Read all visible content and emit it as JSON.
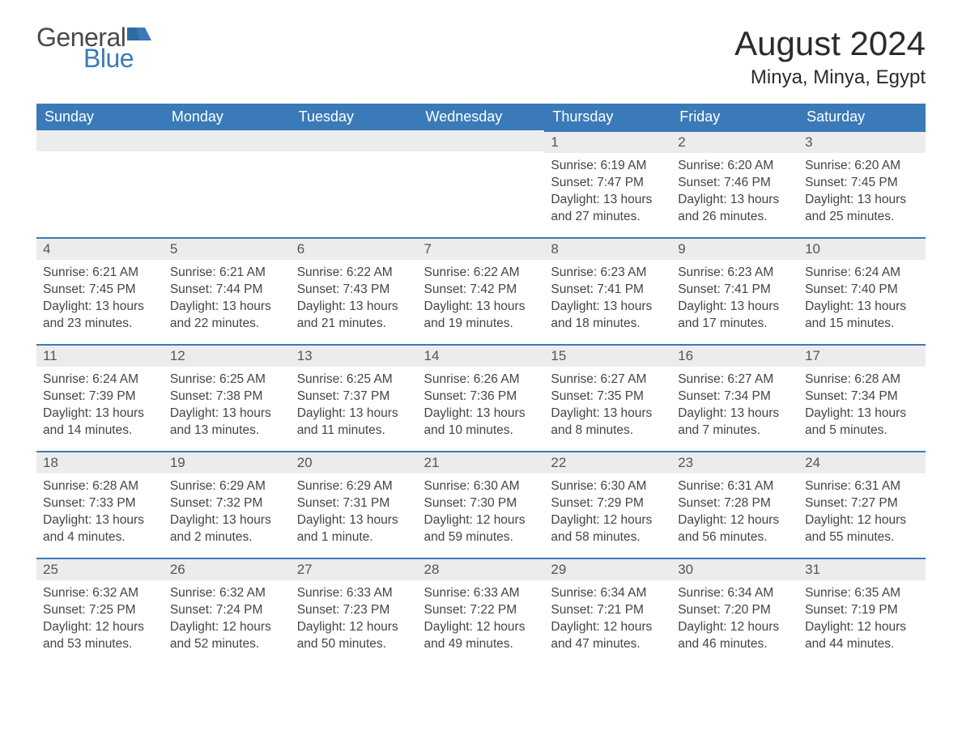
{
  "brand": {
    "word1": "General",
    "word2": "Blue"
  },
  "title": "August 2024",
  "location": "Minya, Minya, Egypt",
  "colors": {
    "header_bg": "#3a7ab8",
    "header_text": "#ffffff",
    "daynum_bg": "#ececec",
    "daynum_border": "#3a7ab8",
    "body_text": "#444444",
    "page_bg": "#ffffff",
    "logo_gray": "#4a4a4a",
    "logo_blue": "#3a7ab8"
  },
  "fonts": {
    "title_size_pt": 32,
    "location_size_pt": 18,
    "header_size_pt": 14,
    "body_size_pt": 12
  },
  "day_headers": [
    "Sunday",
    "Monday",
    "Tuesday",
    "Wednesday",
    "Thursday",
    "Friday",
    "Saturday"
  ],
  "weeks": [
    [
      null,
      null,
      null,
      null,
      {
        "n": "1",
        "sr": "Sunrise: 6:19 AM",
        "ss": "Sunset: 7:47 PM",
        "dl": "Daylight: 13 hours and 27 minutes."
      },
      {
        "n": "2",
        "sr": "Sunrise: 6:20 AM",
        "ss": "Sunset: 7:46 PM",
        "dl": "Daylight: 13 hours and 26 minutes."
      },
      {
        "n": "3",
        "sr": "Sunrise: 6:20 AM",
        "ss": "Sunset: 7:45 PM",
        "dl": "Daylight: 13 hours and 25 minutes."
      }
    ],
    [
      {
        "n": "4",
        "sr": "Sunrise: 6:21 AM",
        "ss": "Sunset: 7:45 PM",
        "dl": "Daylight: 13 hours and 23 minutes."
      },
      {
        "n": "5",
        "sr": "Sunrise: 6:21 AM",
        "ss": "Sunset: 7:44 PM",
        "dl": "Daylight: 13 hours and 22 minutes."
      },
      {
        "n": "6",
        "sr": "Sunrise: 6:22 AM",
        "ss": "Sunset: 7:43 PM",
        "dl": "Daylight: 13 hours and 21 minutes."
      },
      {
        "n": "7",
        "sr": "Sunrise: 6:22 AM",
        "ss": "Sunset: 7:42 PM",
        "dl": "Daylight: 13 hours and 19 minutes."
      },
      {
        "n": "8",
        "sr": "Sunrise: 6:23 AM",
        "ss": "Sunset: 7:41 PM",
        "dl": "Daylight: 13 hours and 18 minutes."
      },
      {
        "n": "9",
        "sr": "Sunrise: 6:23 AM",
        "ss": "Sunset: 7:41 PM",
        "dl": "Daylight: 13 hours and 17 minutes."
      },
      {
        "n": "10",
        "sr": "Sunrise: 6:24 AM",
        "ss": "Sunset: 7:40 PM",
        "dl": "Daylight: 13 hours and 15 minutes."
      }
    ],
    [
      {
        "n": "11",
        "sr": "Sunrise: 6:24 AM",
        "ss": "Sunset: 7:39 PM",
        "dl": "Daylight: 13 hours and 14 minutes."
      },
      {
        "n": "12",
        "sr": "Sunrise: 6:25 AM",
        "ss": "Sunset: 7:38 PM",
        "dl": "Daylight: 13 hours and 13 minutes."
      },
      {
        "n": "13",
        "sr": "Sunrise: 6:25 AM",
        "ss": "Sunset: 7:37 PM",
        "dl": "Daylight: 13 hours and 11 minutes."
      },
      {
        "n": "14",
        "sr": "Sunrise: 6:26 AM",
        "ss": "Sunset: 7:36 PM",
        "dl": "Daylight: 13 hours and 10 minutes."
      },
      {
        "n": "15",
        "sr": "Sunrise: 6:27 AM",
        "ss": "Sunset: 7:35 PM",
        "dl": "Daylight: 13 hours and 8 minutes."
      },
      {
        "n": "16",
        "sr": "Sunrise: 6:27 AM",
        "ss": "Sunset: 7:34 PM",
        "dl": "Daylight: 13 hours and 7 minutes."
      },
      {
        "n": "17",
        "sr": "Sunrise: 6:28 AM",
        "ss": "Sunset: 7:34 PM",
        "dl": "Daylight: 13 hours and 5 minutes."
      }
    ],
    [
      {
        "n": "18",
        "sr": "Sunrise: 6:28 AM",
        "ss": "Sunset: 7:33 PM",
        "dl": "Daylight: 13 hours and 4 minutes."
      },
      {
        "n": "19",
        "sr": "Sunrise: 6:29 AM",
        "ss": "Sunset: 7:32 PM",
        "dl": "Daylight: 13 hours and 2 minutes."
      },
      {
        "n": "20",
        "sr": "Sunrise: 6:29 AM",
        "ss": "Sunset: 7:31 PM",
        "dl": "Daylight: 13 hours and 1 minute."
      },
      {
        "n": "21",
        "sr": "Sunrise: 6:30 AM",
        "ss": "Sunset: 7:30 PM",
        "dl": "Daylight: 12 hours and 59 minutes."
      },
      {
        "n": "22",
        "sr": "Sunrise: 6:30 AM",
        "ss": "Sunset: 7:29 PM",
        "dl": "Daylight: 12 hours and 58 minutes."
      },
      {
        "n": "23",
        "sr": "Sunrise: 6:31 AM",
        "ss": "Sunset: 7:28 PM",
        "dl": "Daylight: 12 hours and 56 minutes."
      },
      {
        "n": "24",
        "sr": "Sunrise: 6:31 AM",
        "ss": "Sunset: 7:27 PM",
        "dl": "Daylight: 12 hours and 55 minutes."
      }
    ],
    [
      {
        "n": "25",
        "sr": "Sunrise: 6:32 AM",
        "ss": "Sunset: 7:25 PM",
        "dl": "Daylight: 12 hours and 53 minutes."
      },
      {
        "n": "26",
        "sr": "Sunrise: 6:32 AM",
        "ss": "Sunset: 7:24 PM",
        "dl": "Daylight: 12 hours and 52 minutes."
      },
      {
        "n": "27",
        "sr": "Sunrise: 6:33 AM",
        "ss": "Sunset: 7:23 PM",
        "dl": "Daylight: 12 hours and 50 minutes."
      },
      {
        "n": "28",
        "sr": "Sunrise: 6:33 AM",
        "ss": "Sunset: 7:22 PM",
        "dl": "Daylight: 12 hours and 49 minutes."
      },
      {
        "n": "29",
        "sr": "Sunrise: 6:34 AM",
        "ss": "Sunset: 7:21 PM",
        "dl": "Daylight: 12 hours and 47 minutes."
      },
      {
        "n": "30",
        "sr": "Sunrise: 6:34 AM",
        "ss": "Sunset: 7:20 PM",
        "dl": "Daylight: 12 hours and 46 minutes."
      },
      {
        "n": "31",
        "sr": "Sunrise: 6:35 AM",
        "ss": "Sunset: 7:19 PM",
        "dl": "Daylight: 12 hours and 44 minutes."
      }
    ]
  ]
}
